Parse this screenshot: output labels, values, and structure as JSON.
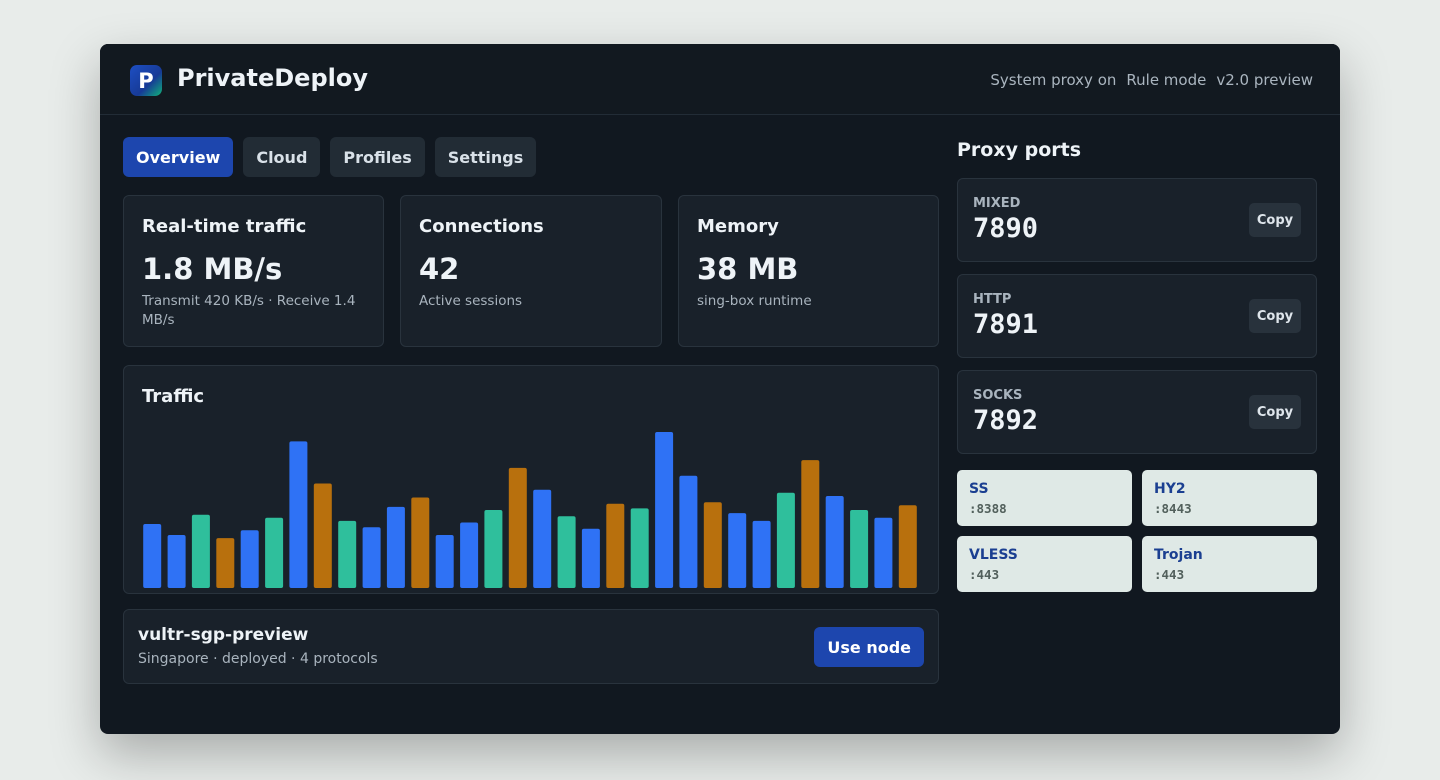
{
  "app": {
    "title": "PrivateDeploy",
    "logo_letter": "P",
    "status": [
      "System proxy on",
      "Rule mode",
      "v2.0 preview"
    ]
  },
  "tabs": [
    {
      "label": "Overview",
      "active": true
    },
    {
      "label": "Cloud",
      "active": false
    },
    {
      "label": "Profiles",
      "active": false
    },
    {
      "label": "Settings",
      "active": false
    }
  ],
  "stats": [
    {
      "title": "Real-time traffic",
      "value": "1.8 MB/s",
      "sub": "Transmit 420 KB/s · Receive 1.4 MB/s"
    },
    {
      "title": "Connections",
      "value": "42",
      "sub": "Active sessions"
    },
    {
      "title": "Memory",
      "value": "38 MB",
      "sub": "sing-box runtime"
    }
  ],
  "traffic": {
    "title": "Traffic",
    "colors": {
      "blue": "#2f72f5",
      "teal": "#2fbf9c",
      "amber": "#b8700d"
    },
    "bars": [
      {
        "level": 0.41,
        "color": "blue"
      },
      {
        "level": 0.34,
        "color": "blue"
      },
      {
        "level": 0.47,
        "color": "teal"
      },
      {
        "level": 0.32,
        "color": "amber"
      },
      {
        "level": 0.37,
        "color": "blue"
      },
      {
        "level": 0.45,
        "color": "teal"
      },
      {
        "level": 0.94,
        "color": "blue"
      },
      {
        "level": 0.67,
        "color": "amber"
      },
      {
        "level": 0.43,
        "color": "teal"
      },
      {
        "level": 0.39,
        "color": "blue"
      },
      {
        "level": 0.52,
        "color": "blue"
      },
      {
        "level": 0.58,
        "color": "amber"
      },
      {
        "level": 0.34,
        "color": "blue"
      },
      {
        "level": 0.42,
        "color": "blue"
      },
      {
        "level": 0.5,
        "color": "teal"
      },
      {
        "level": 0.77,
        "color": "amber"
      },
      {
        "level": 0.63,
        "color": "blue"
      },
      {
        "level": 0.46,
        "color": "teal"
      },
      {
        "level": 0.38,
        "color": "blue"
      },
      {
        "level": 0.54,
        "color": "amber"
      },
      {
        "level": 0.51,
        "color": "teal"
      },
      {
        "level": 1.0,
        "color": "blue"
      },
      {
        "level": 0.72,
        "color": "blue"
      },
      {
        "level": 0.55,
        "color": "amber"
      },
      {
        "level": 0.48,
        "color": "blue"
      },
      {
        "level": 0.43,
        "color": "blue"
      },
      {
        "level": 0.61,
        "color": "teal"
      },
      {
        "level": 0.82,
        "color": "amber"
      },
      {
        "level": 0.59,
        "color": "blue"
      },
      {
        "level": 0.5,
        "color": "teal"
      },
      {
        "level": 0.45,
        "color": "blue"
      },
      {
        "level": 0.53,
        "color": "amber"
      }
    ]
  },
  "node": {
    "name": "vultr-sgp-preview",
    "sub": "Singapore · deployed · 4 protocols",
    "button": "Use node"
  },
  "ports": {
    "title": "Proxy ports",
    "copy_label": "Copy",
    "items": [
      {
        "label": "MIXED",
        "value": "7890"
      },
      {
        "label": "HTTP",
        "value": "7891"
      },
      {
        "label": "SOCKS",
        "value": "7892"
      }
    ]
  },
  "protocols": [
    {
      "name": "SS",
      "port": ":8388"
    },
    {
      "name": "HY2",
      "port": ":8443"
    },
    {
      "name": "VLESS",
      "port": ":443"
    },
    {
      "name": "Trojan",
      "port": ":443"
    }
  ]
}
